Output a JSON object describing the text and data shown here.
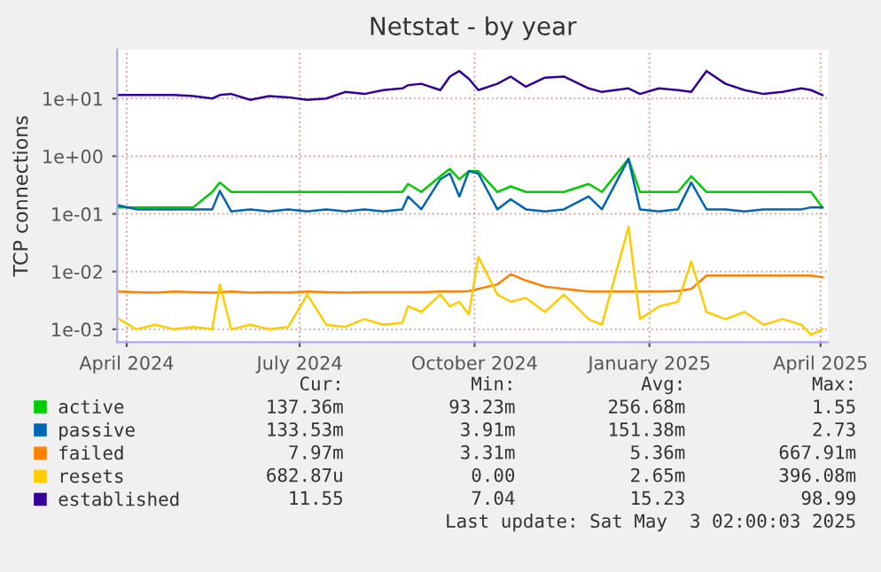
{
  "chart_data": {
    "type": "line",
    "title": "Netstat - by year",
    "ylabel": "TCP connections",
    "log": "y",
    "grid": true,
    "legend": "bottom",
    "x": [
      "2024-03-28",
      "2024-04-06",
      "2024-04-16",
      "2024-04-26",
      "2024-05-06",
      "2024-05-16",
      "2024-05-20",
      "2024-05-26",
      "2024-06-05",
      "2024-06-15",
      "2024-06-25",
      "2024-07-05",
      "2024-07-15",
      "2024-07-25",
      "2024-08-04",
      "2024-08-14",
      "2024-08-24",
      "2024-08-27",
      "2024-09-03",
      "2024-09-13",
      "2024-09-18",
      "2024-09-23",
      "2024-09-28",
      "2024-10-03",
      "2024-10-13",
      "2024-10-20",
      "2024-10-28",
      "2024-11-07",
      "2024-11-17",
      "2024-11-30",
      "2024-12-07",
      "2024-12-21",
      "2024-12-27",
      "2025-01-06",
      "2025-01-16",
      "2025-01-23",
      "2025-01-31",
      "2025-02-10",
      "2025-02-20",
      "2025-03-02",
      "2025-03-12",
      "2025-03-22",
      "2025-03-27",
      "2025-04-02"
    ],
    "xlim": [
      "2024-03-27",
      "2025-04-05"
    ],
    "xticks": [
      {
        "value": "2024-04-01",
        "label": "April 2024"
      },
      {
        "value": "2024-07-01",
        "label": "July 2024"
      },
      {
        "value": "2024-10-01",
        "label": "October 2024"
      },
      {
        "value": "2025-01-01",
        "label": "January 2025"
      },
      {
        "value": "2025-04-01",
        "label": "April 2025"
      }
    ],
    "ylim": [
      0.0006,
      70
    ],
    "yticks": [
      {
        "value": 0.001,
        "label": "1e-03"
      },
      {
        "value": 0.01,
        "label": "1e-02"
      },
      {
        "value": 0.1,
        "label": "1e-01"
      },
      {
        "value": 1,
        "label": "1e+00"
      },
      {
        "value": 10,
        "label": "1e+01"
      }
    ],
    "series": [
      {
        "name": "active",
        "color": "#00cc00",
        "values": [
          0.13,
          0.13,
          0.13,
          0.13,
          0.13,
          0.24,
          0.35,
          0.24,
          0.24,
          0.24,
          0.24,
          0.24,
          0.24,
          0.24,
          0.24,
          0.24,
          0.24,
          0.33,
          0.24,
          0.45,
          0.6,
          0.4,
          0.55,
          0.55,
          0.24,
          0.3,
          0.24,
          0.24,
          0.24,
          0.33,
          0.24,
          0.9,
          0.24,
          0.24,
          0.24,
          0.45,
          0.24,
          0.24,
          0.24,
          0.24,
          0.24,
          0.24,
          0.24,
          0.13
        ]
      },
      {
        "name": "passive",
        "color": "#0066b3",
        "values": [
          0.14,
          0.12,
          0.12,
          0.12,
          0.12,
          0.12,
          0.25,
          0.11,
          0.12,
          0.11,
          0.12,
          0.11,
          0.12,
          0.11,
          0.12,
          0.11,
          0.12,
          0.2,
          0.12,
          0.4,
          0.5,
          0.2,
          0.55,
          0.5,
          0.12,
          0.18,
          0.12,
          0.11,
          0.12,
          0.2,
          0.12,
          0.9,
          0.12,
          0.11,
          0.12,
          0.35,
          0.12,
          0.12,
          0.11,
          0.12,
          0.12,
          0.12,
          0.13,
          0.13
        ]
      },
      {
        "name": "failed",
        "color": "#ff8000",
        "values": [
          0.0045,
          0.0044,
          0.0043,
          0.0045,
          0.0044,
          0.0043,
          0.0044,
          0.0045,
          0.0043,
          0.0044,
          0.0043,
          0.0045,
          0.0044,
          0.0043,
          0.0044,
          0.0044,
          0.0044,
          0.0044,
          0.0044,
          0.0045,
          0.0045,
          0.0045,
          0.0046,
          0.005,
          0.006,
          0.009,
          0.007,
          0.0055,
          0.005,
          0.0045,
          0.0045,
          0.0045,
          0.0045,
          0.0045,
          0.0046,
          0.005,
          0.0085,
          0.0085,
          0.0085,
          0.0085,
          0.0085,
          0.0085,
          0.0085,
          0.008
        ]
      },
      {
        "name": "resets",
        "color": "#ffcc00",
        "values": [
          0.0015,
          0.001,
          0.0012,
          0.001,
          0.0011,
          0.001,
          0.006,
          0.001,
          0.0012,
          0.001,
          0.0011,
          0.004,
          0.0012,
          0.0011,
          0.0015,
          0.0012,
          0.0013,
          0.0025,
          0.002,
          0.004,
          0.0025,
          0.003,
          0.0018,
          0.018,
          0.004,
          0.003,
          0.0035,
          0.002,
          0.004,
          0.0015,
          0.0012,
          0.06,
          0.0015,
          0.0025,
          0.003,
          0.015,
          0.002,
          0.0015,
          0.002,
          0.0012,
          0.0015,
          0.0012,
          0.0008,
          0.001
        ]
      },
      {
        "name": "established",
        "color": "#330099",
        "values": [
          11.5,
          11.5,
          11.5,
          11.5,
          11,
          10,
          11.5,
          12,
          9.5,
          11,
          10.5,
          9.5,
          10,
          13,
          12,
          14,
          15,
          17,
          18,
          14,
          24,
          30,
          22,
          14,
          18,
          24,
          16,
          23,
          24,
          15,
          13,
          15,
          12,
          15,
          14,
          13,
          30,
          18,
          14,
          12,
          13,
          15,
          14,
          11.5
        ]
      }
    ],
    "annotations": [
      "Cur:",
      "Min:",
      "Avg:",
      "Max:",
      "137.36m",
      "93.23m",
      "256.68m",
      "1.55",
      "133.53m",
      "3.91m",
      "151.38m",
      "2.73",
      "7.97m",
      "3.31m",
      "5.36m",
      "667.91m",
      "682.87u",
      "0.00",
      "2.65m",
      "396.08m",
      "11.55",
      "7.04",
      "15.23",
      "98.99",
      "Last update: Sat May  3 02:00:03 2025"
    ]
  }
}
